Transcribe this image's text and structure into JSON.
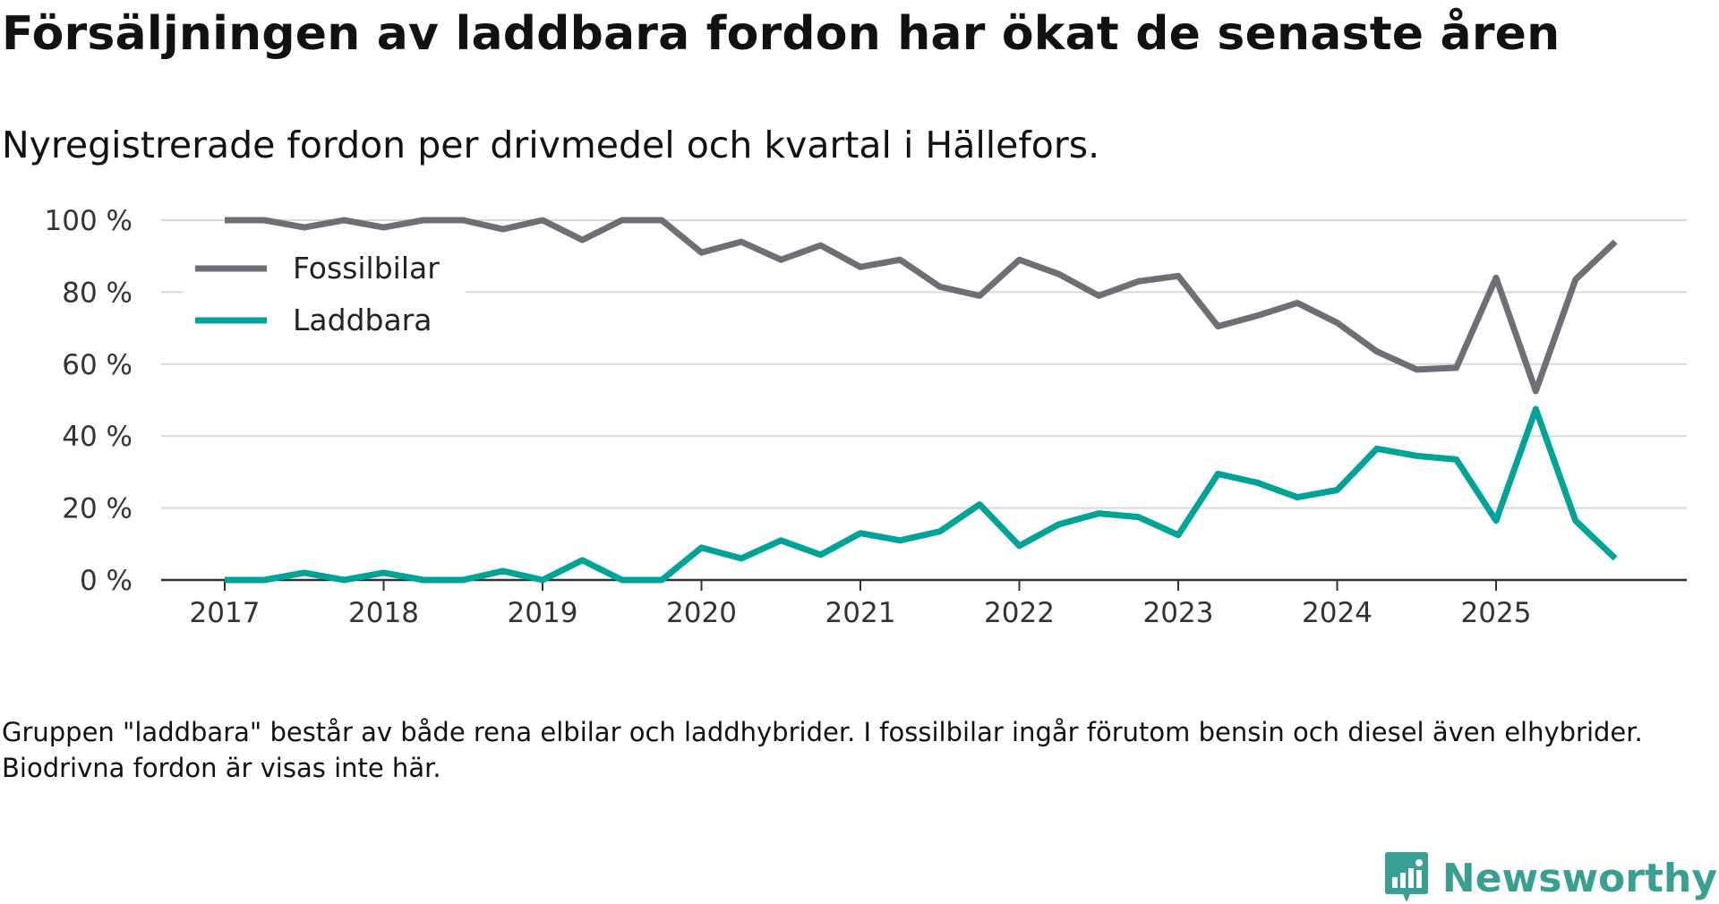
{
  "header": {
    "title": "Försäljningen av laddbara fordon har ökat de senaste åren",
    "subtitle": "Nyregistrerade fordon per drivmedel och kvartal i Hällefors."
  },
  "footnote": "Gruppen \"laddbara\" består av både rena elbilar och laddhybrider. I fossilbilar ingår förutom bensin och diesel även elhybrider. Biodrivna fordon är visas inte här.",
  "brand": {
    "name": "Newsworthy",
    "logo_icon": "newsworthy-logo-icon",
    "color": "#3a9f93"
  },
  "chart_data": {
    "type": "line",
    "title": "Försäljningen av laddbara fordon har ökat de senaste åren",
    "subtitle": "Nyregistrerade fordon per drivmedel och kvartal i Hällefors.",
    "xlabel": "",
    "ylabel": "",
    "x_unit": "quarter",
    "x_start": 2017.0,
    "x_step": 0.25,
    "xlim": [
      2016.6,
      2026.2
    ],
    "ylim": [
      0,
      100
    ],
    "y_ticks": [
      0,
      20,
      40,
      60,
      80,
      100
    ],
    "y_tick_labels": [
      "0 %",
      "20 %",
      "40 %",
      "60 %",
      "80 %",
      "100 %"
    ],
    "x_ticks": [
      2017,
      2018,
      2019,
      2020,
      2021,
      2022,
      2023,
      2024,
      2025
    ],
    "x_tick_labels": [
      "2017",
      "2018",
      "2019",
      "2020",
      "2021",
      "2022",
      "2023",
      "2024",
      "2025"
    ],
    "grid": true,
    "legend_position": "top-left",
    "series": [
      {
        "name": "Fossilbilar",
        "color": "#6f6e77",
        "values": [
          100,
          100,
          98,
          100,
          98,
          100,
          100,
          97.5,
          100,
          94.5,
          100,
          100,
          91,
          94,
          89,
          93,
          87,
          89,
          81.5,
          79,
          89,
          85,
          79,
          83,
          84.5,
          70.5,
          73.5,
          77,
          71.5,
          63.5,
          58.5,
          59,
          84,
          52.5,
          83.5,
          94
        ]
      },
      {
        "name": "Laddbara",
        "color": "#00a398",
        "values": [
          0,
          0,
          2,
          0,
          2,
          0,
          0,
          2.5,
          0,
          5.5,
          0,
          0,
          9,
          6,
          11,
          7,
          13,
          11,
          13.5,
          21,
          9.5,
          15.5,
          18.5,
          17.5,
          12.5,
          29.5,
          27,
          23,
          25,
          36.5,
          34.5,
          33.5,
          16.5,
          47.5,
          16.5,
          6
        ]
      }
    ]
  }
}
